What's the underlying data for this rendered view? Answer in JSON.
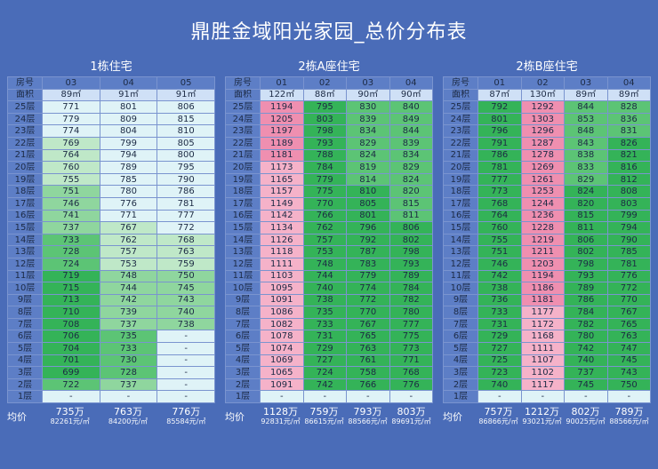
{
  "title": "鼎胜金域阳光家园_总价分布表",
  "labels": {
    "room": "房号",
    "area": "面积",
    "avg": "均价"
  },
  "floors": [
    "25层",
    "24层",
    "23层",
    "22层",
    "21层",
    "20层",
    "19层",
    "18层",
    "17层",
    "16层",
    "15层",
    "14层",
    "13层",
    "12层",
    "11层",
    "10层",
    "9层",
    "8层",
    "7层",
    "6层",
    "5层",
    "4层",
    "3层",
    "2层",
    "1层"
  ],
  "buildings": [
    {
      "name": "1栋住宅",
      "rooms": [
        "03",
        "04",
        "05"
      ],
      "areas": [
        "89㎡",
        "91㎡",
        "91㎡"
      ],
      "values": [
        [
          "771",
          "801",
          "806"
        ],
        [
          "779",
          "809",
          "815"
        ],
        [
          "774",
          "804",
          "810"
        ],
        [
          "769",
          "799",
          "805"
        ],
        [
          "764",
          "794",
          "800"
        ],
        [
          "760",
          "789",
          "795"
        ],
        [
          "755",
          "785",
          "790"
        ],
        [
          "751",
          "780",
          "786"
        ],
        [
          "746",
          "776",
          "781"
        ],
        [
          "741",
          "771",
          "777"
        ],
        [
          "737",
          "767",
          "772"
        ],
        [
          "733",
          "762",
          "768"
        ],
        [
          "728",
          "757",
          "763"
        ],
        [
          "724",
          "753",
          "759"
        ],
        [
          "719",
          "748",
          "750"
        ],
        [
          "715",
          "744",
          "745"
        ],
        [
          "713",
          "742",
          "743"
        ],
        [
          "710",
          "739",
          "740"
        ],
        [
          "708",
          "737",
          "738"
        ],
        [
          "706",
          "735",
          "-"
        ],
        [
          "704",
          "733",
          "-"
        ],
        [
          "701",
          "730",
          "-"
        ],
        [
          "699",
          "728",
          "-"
        ],
        [
          "722",
          "737",
          "-"
        ],
        [
          "-",
          "-",
          "-"
        ]
      ],
      "totals": [
        "735万",
        "763万",
        "776万"
      ],
      "unit_prices": [
        "82261元/㎡",
        "84200元/㎡",
        "85584元/㎡"
      ]
    },
    {
      "name": "2栋A座住宅",
      "rooms": [
        "01",
        "02",
        "03",
        "04"
      ],
      "areas": [
        "122㎡",
        "88㎡",
        "90㎡",
        "90㎡"
      ],
      "values": [
        [
          "1194",
          "795",
          "830",
          "840"
        ],
        [
          "1205",
          "803",
          "839",
          "849"
        ],
        [
          "1197",
          "798",
          "834",
          "844"
        ],
        [
          "1189",
          "793",
          "829",
          "839"
        ],
        [
          "1181",
          "788",
          "824",
          "834"
        ],
        [
          "1173",
          "784",
          "819",
          "829"
        ],
        [
          "1165",
          "779",
          "814",
          "824"
        ],
        [
          "1157",
          "775",
          "810",
          "820"
        ],
        [
          "1149",
          "770",
          "805",
          "815"
        ],
        [
          "1142",
          "766",
          "801",
          "811"
        ],
        [
          "1134",
          "762",
          "796",
          "806"
        ],
        [
          "1126",
          "757",
          "792",
          "802"
        ],
        [
          "1118",
          "753",
          "787",
          "798"
        ],
        [
          "1111",
          "748",
          "783",
          "793"
        ],
        [
          "1103",
          "744",
          "779",
          "789"
        ],
        [
          "1095",
          "740",
          "774",
          "784"
        ],
        [
          "1091",
          "738",
          "772",
          "782"
        ],
        [
          "1086",
          "735",
          "770",
          "780"
        ],
        [
          "1082",
          "733",
          "767",
          "777"
        ],
        [
          "1078",
          "731",
          "765",
          "775"
        ],
        [
          "1074",
          "729",
          "763",
          "773"
        ],
        [
          "1069",
          "727",
          "761",
          "771"
        ],
        [
          "1065",
          "724",
          "758",
          "768"
        ],
        [
          "1091",
          "742",
          "766",
          "776"
        ],
        [
          "-",
          "-",
          "-",
          "-"
        ]
      ],
      "totals": [
        "1128万",
        "759万",
        "793万",
        "803万"
      ],
      "unit_prices": [
        "92831元/㎡",
        "86615元/㎡",
        "88566元/㎡",
        "89691元/㎡"
      ]
    },
    {
      "name": "2栋B座住宅",
      "rooms": [
        "01",
        "02",
        "03",
        "04"
      ],
      "areas": [
        "87㎡",
        "130㎡",
        "89㎡",
        "89㎡"
      ],
      "values": [
        [
          "792",
          "1292",
          "844",
          "828"
        ],
        [
          "801",
          "1303",
          "853",
          "836"
        ],
        [
          "796",
          "1296",
          "848",
          "831"
        ],
        [
          "791",
          "1287",
          "843",
          "826"
        ],
        [
          "786",
          "1278",
          "838",
          "821"
        ],
        [
          "781",
          "1269",
          "833",
          "816"
        ],
        [
          "777",
          "1261",
          "829",
          "812"
        ],
        [
          "773",
          "1253",
          "824",
          "808"
        ],
        [
          "768",
          "1244",
          "820",
          "803"
        ],
        [
          "764",
          "1236",
          "815",
          "799"
        ],
        [
          "760",
          "1228",
          "811",
          "794"
        ],
        [
          "755",
          "1219",
          "806",
          "790"
        ],
        [
          "751",
          "1211",
          "802",
          "785"
        ],
        [
          "746",
          "1203",
          "798",
          "781"
        ],
        [
          "742",
          "1194",
          "793",
          "776"
        ],
        [
          "738",
          "1186",
          "789",
          "772"
        ],
        [
          "736",
          "1181",
          "786",
          "770"
        ],
        [
          "733",
          "1177",
          "784",
          "767"
        ],
        [
          "731",
          "1172",
          "782",
          "765"
        ],
        [
          "729",
          "1168",
          "780",
          "763"
        ],
        [
          "727",
          "1111",
          "742",
          "747"
        ],
        [
          "725",
          "1107",
          "740",
          "745"
        ],
        [
          "723",
          "1102",
          "737",
          "743"
        ],
        [
          "740",
          "1117",
          "745",
          "750"
        ],
        [
          "-",
          "-",
          "-",
          "-"
        ]
      ],
      "totals": [
        "757万",
        "1212万",
        "802万",
        "789万"
      ],
      "unit_prices": [
        "86866元/㎡",
        "93021元/㎡",
        "90025元/㎡",
        "88566元/㎡"
      ]
    }
  ]
}
